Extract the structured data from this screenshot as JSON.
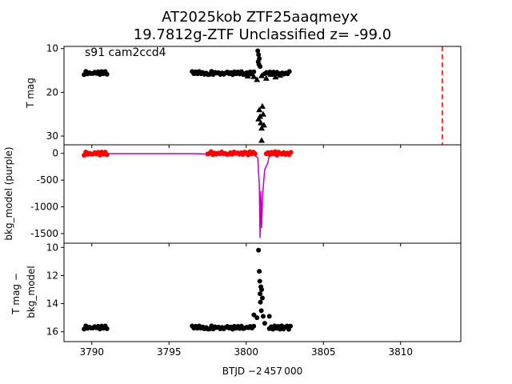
{
  "figure": {
    "title_line1": "AT2025kob  ZTF25aaqmeyx",
    "title_line2": "19.7812g-ZTF Unclassified z= -99.0",
    "xlabel": "BTJD −2 457 000"
  },
  "chart_data": [
    {
      "type": "scatter",
      "panel": "top",
      "annotation": "s91 cam2ccd4",
      "ylabel": "T mag",
      "xlim": [
        3788.2,
        3813.9
      ],
      "ylim": [
        32.0,
        9.5
      ],
      "y_inverted": true,
      "yticks": [
        10,
        20,
        30
      ],
      "marker_line_x": 3812.7,
      "marker_line_color": "#ff0000",
      "series": [
        {
          "marker": "circle",
          "segments": [
            {
              "x": [
                3789.5,
                3791.0
              ],
              "y": 15.6
            },
            {
              "x": [
                3796.5,
                3800.6
              ],
              "y": 15.6
            },
            {
              "x": [
                3801.2,
                3802.9
              ],
              "y": 15.6
            }
          ]
        },
        {
          "marker": "triangle",
          "points": [
            {
              "x": 3799.9,
              "y": 15.9
            },
            {
              "x": 3800.1,
              "y": 16.3
            },
            {
              "x": 3800.3,
              "y": 15.8
            },
            {
              "x": 3800.5,
              "y": 16.4
            },
            {
              "x": 3800.7,
              "y": 17.1
            },
            {
              "x": 3801.0,
              "y": 16.2
            },
            {
              "x": 3801.3,
              "y": 16.8
            },
            {
              "x": 3801.6,
              "y": 15.9
            },
            {
              "x": 3801.9,
              "y": 16.5
            },
            {
              "x": 3802.2,
              "y": 16.1
            },
            {
              "x": 3800.85,
              "y": 24.0
            },
            {
              "x": 3800.9,
              "y": 25.5
            },
            {
              "x": 3800.95,
              "y": 27.0
            },
            {
              "x": 3801.0,
              "y": 28.2
            },
            {
              "x": 3801.05,
              "y": 23.2
            },
            {
              "x": 3800.8,
              "y": 26.1
            },
            {
              "x": 3801.1,
              "y": 25.0
            },
            {
              "x": 3801.15,
              "y": 27.5
            },
            {
              "x": 3801.0,
              "y": 31.0
            }
          ]
        },
        {
          "marker": "circle",
          "points": [
            {
              "x": 3800.75,
              "y": 10.5
            },
            {
              "x": 3800.8,
              "y": 11.4
            },
            {
              "x": 3800.85,
              "y": 12.3
            },
            {
              "x": 3800.78,
              "y": 13.0
            },
            {
              "x": 3800.82,
              "y": 13.6
            },
            {
              "x": 3800.9,
              "y": 14.1
            }
          ]
        }
      ]
    },
    {
      "type": "line+scatter",
      "panel": "middle",
      "ylabel": "bkg_model (purple)",
      "xlim": [
        3788.2,
        3813.9
      ],
      "ylim": [
        -1680,
        160
      ],
      "yticks": [
        0,
        -500,
        -1000,
        -1500
      ],
      "series": [
        {
          "name": "",
          "color": "#bf00bf",
          "x": [
            3789.5,
            3796.5,
            3799.0,
            3800.5,
            3800.75,
            3800.85,
            3800.9,
            3800.95,
            3801.0,
            3801.05,
            3801.1,
            3801.2,
            3801.4,
            3801.5,
            3802.9
          ],
          "y": [
            -5,
            -5,
            -20,
            -30,
            -80,
            -600,
            -1580,
            -700,
            -1400,
            -900,
            -650,
            -300,
            -180,
            -40,
            -20
          ]
        },
        {
          "name": "",
          "color": "#ff0000",
          "marker": "circle",
          "segments": [
            {
              "x": [
                3789.5,
                3791.0
              ],
              "y": -5
            },
            {
              "x": [
                3797.5,
                3800.6
              ],
              "y": 0
            },
            {
              "x": [
                3801.3,
                3802.9
              ],
              "y": 0
            }
          ]
        }
      ]
    },
    {
      "type": "scatter",
      "panel": "bottom",
      "ylabel": "T mag − bkg_model",
      "xlim": [
        3788.2,
        3813.9
      ],
      "ylim": [
        16.7,
        9.7
      ],
      "y_inverted": true,
      "yticks": [
        10,
        12,
        14,
        16
      ],
      "series": [
        {
          "marker": "circle",
          "segments": [
            {
              "x": [
                3789.5,
                3791.0
              ],
              "y": 15.7
            },
            {
              "x": [
                3796.5,
                3800.5
              ],
              "y": 15.7
            },
            {
              "x": [
                3801.5,
                3802.9
              ],
              "y": 15.7
            }
          ],
          "points": [
            {
              "x": 3800.8,
              "y": 10.2
            },
            {
              "x": 3800.85,
              "y": 11.7
            },
            {
              "x": 3800.88,
              "y": 12.4
            },
            {
              "x": 3800.95,
              "y": 12.8
            },
            {
              "x": 3800.9,
              "y": 13.3
            },
            {
              "x": 3801.0,
              "y": 13.0
            },
            {
              "x": 3800.92,
              "y": 13.9
            },
            {
              "x": 3801.05,
              "y": 13.6
            },
            {
              "x": 3800.98,
              "y": 14.5
            },
            {
              "x": 3801.1,
              "y": 14.9
            },
            {
              "x": 3800.5,
              "y": 14.8
            },
            {
              "x": 3800.7,
              "y": 15.0
            },
            {
              "x": 3801.5,
              "y": 14.9
            },
            {
              "x": 3801.2,
              "y": 15.4
            }
          ]
        }
      ]
    }
  ],
  "xticks": [
    3790,
    3795,
    3800,
    3805,
    3810
  ]
}
